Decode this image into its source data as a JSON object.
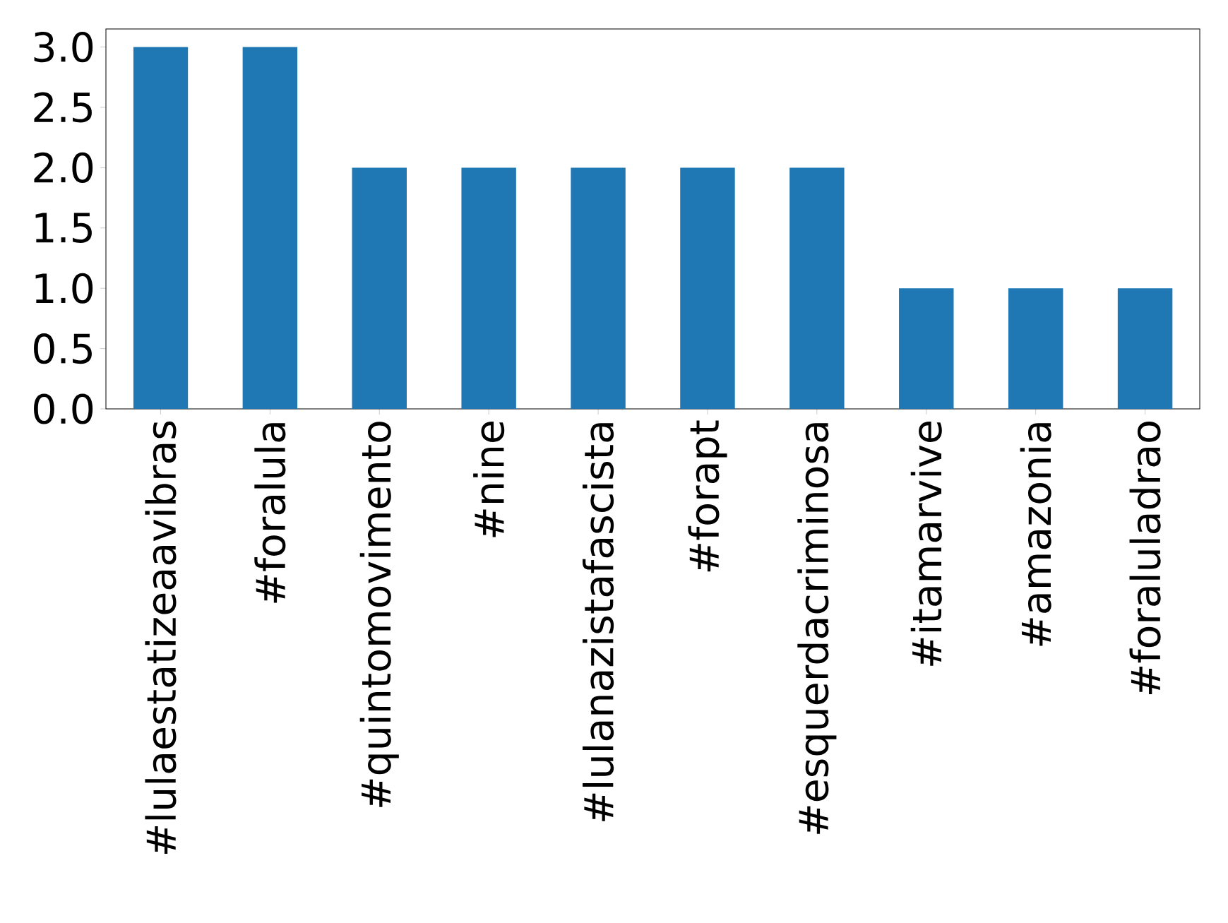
{
  "chart_data": {
    "type": "bar",
    "categories": [
      "#lulaestatizeaavibras",
      "#foralula",
      "#quintomovimento",
      "#nine",
      "#lulanazistafascista",
      "#forapt",
      "#esquerdacriminosa",
      "#itamarvive",
      "#amazonia",
      "#foraluladrao"
    ],
    "values": [
      3,
      3,
      2,
      2,
      2,
      2,
      2,
      1,
      1,
      1
    ],
    "color": "#1f77b4",
    "ylim": [
      0,
      3.15
    ],
    "yticks": [
      {
        "value": 0,
        "label": "0.0"
      },
      {
        "value": 0.5,
        "label": "0.5"
      },
      {
        "value": 1,
        "label": "1.0"
      },
      {
        "value": 1.5,
        "label": "1.5"
      },
      {
        "value": 2,
        "label": "2.0"
      },
      {
        "value": 2.5,
        "label": "2.5"
      },
      {
        "value": 3,
        "label": "3.0"
      }
    ]
  }
}
